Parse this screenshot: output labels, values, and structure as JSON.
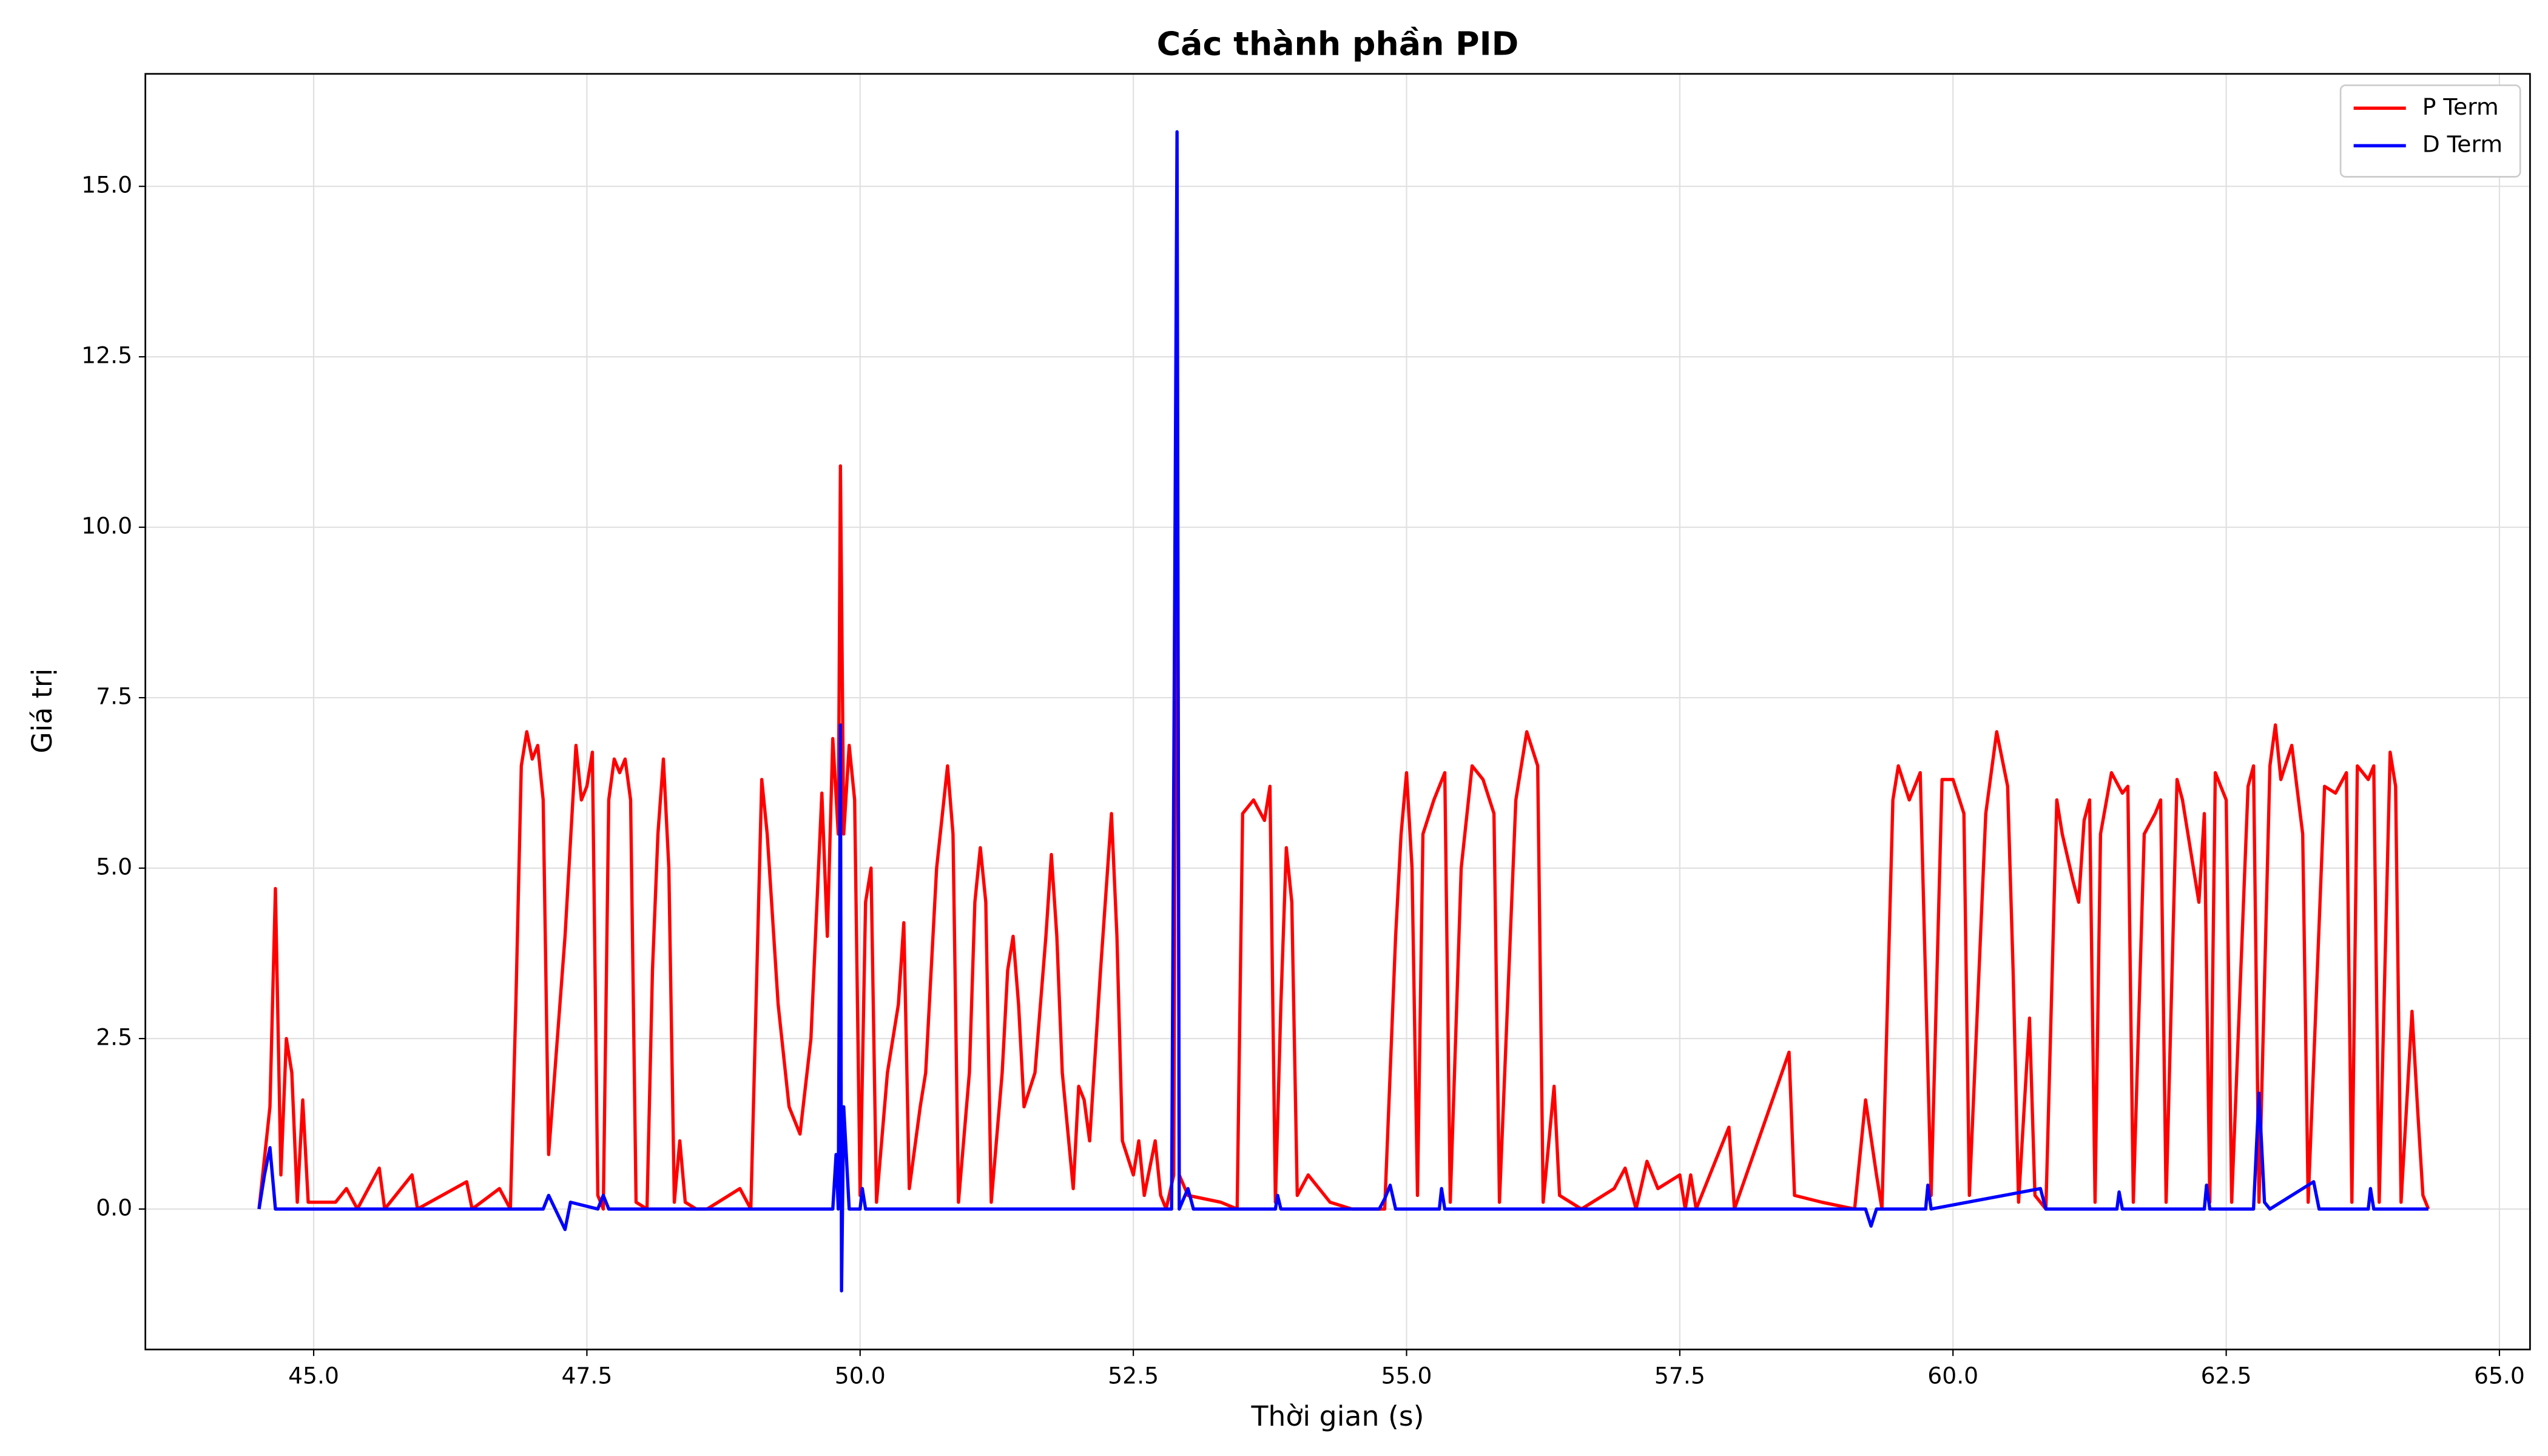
{
  "chart_data": {
    "type": "line",
    "title": "Các thành phần PID",
    "x_label": "Thời gian (s)",
    "y_label": "Giá trị",
    "grid": true,
    "legend": "upper right",
    "xlim": [
      43.46,
      65.28
    ],
    "ylim": [
      -2.06,
      16.65
    ],
    "xticks": [
      {
        "value": 45,
        "label": "45.0"
      },
      47.5,
      {
        "value": 50,
        "label": "50.0"
      },
      52.5,
      {
        "value": 55,
        "label": "55.0"
      },
      57.5,
      {
        "value": 60,
        "label": "60.0"
      },
      62.5,
      {
        "value": 65,
        "label": "65.0"
      }
    ],
    "yticks": [
      {
        "value": 0,
        "label": "0.0"
      },
      2.5,
      {
        "value": 5,
        "label": "5.0"
      },
      7.5,
      {
        "value": 10,
        "label": "10.0"
      },
      12.5,
      {
        "value": 15,
        "label": "15.0"
      }
    ],
    "series": [
      {
        "name": "P Term",
        "color": "#ff0000",
        "x": [
          44.5,
          44.6,
          44.65,
          44.7,
          44.75,
          44.8,
          44.85,
          44.9,
          44.95,
          45.2,
          45.3,
          45.4,
          45.6,
          45.65,
          45.9,
          45.95,
          46.4,
          46.45,
          46.7,
          46.8,
          46.85,
          46.9,
          46.95,
          47.0,
          47.05,
          47.1,
          47.15,
          47.3,
          47.4,
          47.45,
          47.5,
          47.55,
          47.6,
          47.65,
          47.7,
          47.75,
          47.8,
          47.85,
          47.9,
          47.95,
          48.05,
          48.1,
          48.15,
          48.2,
          48.25,
          48.3,
          48.35,
          48.4,
          48.5,
          48.6,
          48.9,
          49.0,
          49.1,
          49.15,
          49.25,
          49.35,
          49.45,
          49.55,
          49.65,
          49.7,
          49.75,
          49.8,
          49.82,
          49.85,
          49.9,
          49.95,
          50.0,
          50.05,
          50.1,
          50.15,
          50.25,
          50.35,
          50.4,
          50.45,
          50.55,
          50.6,
          50.7,
          50.8,
          50.85,
          50.9,
          51.0,
          51.05,
          51.1,
          51.15,
          51.2,
          51.3,
          51.35,
          51.4,
          51.45,
          51.5,
          51.6,
          51.7,
          51.75,
          51.8,
          51.85,
          51.95,
          52.0,
          52.05,
          52.1,
          52.2,
          52.3,
          52.35,
          52.4,
          52.5,
          52.55,
          52.6,
          52.7,
          52.75,
          52.8,
          52.87,
          52.9,
          52.92,
          53.0,
          53.3,
          53.45,
          53.5,
          53.6,
          53.7,
          53.75,
          53.8,
          53.85,
          53.9,
          53.95,
          54.0,
          54.1,
          54.2,
          54.3,
          54.5,
          54.8,
          54.9,
          54.95,
          55.0,
          55.05,
          55.1,
          55.15,
          55.25,
          55.35,
          55.4,
          55.5,
          55.6,
          55.7,
          55.8,
          55.85,
          56.0,
          56.1,
          56.2,
          56.25,
          56.35,
          56.4,
          56.6,
          56.9,
          57.0,
          57.1,
          57.2,
          57.3,
          57.5,
          57.55,
          57.6,
          57.65,
          57.95,
          58.0,
          58.5,
          58.55,
          58.8,
          59.1,
          59.2,
          59.3,
          59.35,
          59.45,
          59.5,
          59.6,
          59.7,
          59.8,
          59.9,
          60.0,
          60.1,
          60.15,
          60.3,
          60.4,
          60.5,
          60.55,
          60.6,
          60.7,
          60.75,
          60.85,
          60.95,
          61.0,
          61.1,
          61.15,
          61.2,
          61.25,
          61.3,
          61.35,
          61.45,
          61.55,
          61.6,
          61.65,
          61.75,
          61.85,
          61.9,
          61.95,
          62.05,
          62.1,
          62.2,
          62.25,
          62.3,
          62.35,
          62.4,
          62.5,
          62.55,
          62.7,
          62.75,
          62.8,
          62.9,
          62.95,
          63.0,
          63.1,
          63.2,
          63.25,
          63.4,
          63.5,
          63.6,
          63.65,
          63.7,
          63.8,
          63.85,
          63.9,
          64.0,
          64.05,
          64.1,
          64.2,
          64.25,
          64.3,
          64.35
        ],
        "values": [
          0,
          1.5,
          4.7,
          0.5,
          2.5,
          2.0,
          0.1,
          1.6,
          0.1,
          0.1,
          0.3,
          0,
          0.6,
          0,
          0.5,
          0,
          0.4,
          0,
          0.3,
          0,
          3,
          6.5,
          7.0,
          6.6,
          6.8,
          6.0,
          0.8,
          4,
          6.8,
          6,
          6.2,
          6.7,
          0.2,
          0,
          6,
          6.6,
          6.4,
          6.6,
          6.0,
          0.1,
          0,
          3.5,
          5.5,
          6.6,
          5,
          0.1,
          1.0,
          0.1,
          0,
          0,
          0.3,
          0,
          6.3,
          5.5,
          3,
          1.5,
          1.1,
          2.5,
          6.1,
          4,
          6.9,
          5.5,
          10.9,
          5.5,
          6.8,
          6,
          0.2,
          4.5,
          5,
          0.1,
          2,
          3,
          4.2,
          0.3,
          1.5,
          2,
          5,
          6.5,
          5.5,
          0.1,
          2,
          4.5,
          5.3,
          4.5,
          0.1,
          2,
          3.5,
          4,
          3,
          1.5,
          2,
          4,
          5.2,
          4,
          2,
          0.3,
          1.8,
          1.6,
          1,
          3.5,
          5.8,
          4,
          1,
          0.5,
          1,
          0.2,
          1,
          0.2,
          0,
          0.5,
          14,
          0.5,
          0.2,
          0.1,
          0,
          5.8,
          6.0,
          5.7,
          6.2,
          0.1,
          3,
          5.3,
          4.5,
          0.2,
          0.5,
          0.3,
          0.1,
          0,
          0,
          4,
          5.5,
          6.4,
          5,
          0.2,
          5.5,
          6,
          6.4,
          0.1,
          5,
          6.5,
          6.3,
          5.8,
          0.1,
          6,
          7,
          6.5,
          0.1,
          1.8,
          0.2,
          0,
          0.3,
          0.6,
          0,
          0.7,
          0.3,
          0.5,
          0,
          0.5,
          0,
          1.2,
          0,
          2.3,
          0.2,
          0.1,
          0,
          1.6,
          0.5,
          0,
          6,
          6.5,
          6.0,
          6.4,
          0.2,
          6.3,
          6.3,
          5.8,
          0.2,
          5.8,
          7,
          6.2,
          3.5,
          0.1,
          2.8,
          0.2,
          0,
          6,
          5.5,
          4.8,
          4.5,
          5.7,
          6,
          0.1,
          5.5,
          6.4,
          6.1,
          6.2,
          0.1,
          5.5,
          5.8,
          6,
          0.1,
          6.3,
          6,
          5,
          4.5,
          5.8,
          0.1,
          6.4,
          6,
          0.1,
          6.2,
          6.5,
          0.1,
          6.5,
          7.1,
          6.3,
          6.8,
          5.5,
          0.1,
          6.2,
          6.1,
          6.4,
          0.1,
          6.5,
          6.3,
          6.5,
          0.1,
          6.7,
          6.2,
          0.1,
          2.9,
          1.5,
          0.2,
          0
        ]
      },
      {
        "name": "D Term",
        "color": "#0000ff",
        "x": [
          44.5,
          44.55,
          44.6,
          44.65,
          45.0,
          47.1,
          47.15,
          47.3,
          47.35,
          47.6,
          47.65,
          47.7,
          49.75,
          49.78,
          49.8,
          49.82,
          49.83,
          49.85,
          49.9,
          50.0,
          50.02,
          50.05,
          52.85,
          52.9,
          52.92,
          53.0,
          53.05,
          53.8,
          53.82,
          53.85,
          54.75,
          54.8,
          54.85,
          54.9,
          55.3,
          55.32,
          55.35,
          59.2,
          59.25,
          59.3,
          59.75,
          59.77,
          59.8,
          60.8,
          60.85,
          61.5,
          61.52,
          61.55,
          62.3,
          62.32,
          62.35,
          62.75,
          62.8,
          62.85,
          62.9,
          63.3,
          63.35,
          63.8,
          63.82,
          63.85,
          64.35
        ],
        "values": [
          0,
          0.5,
          0.9,
          0,
          0,
          0,
          0.2,
          -0.3,
          0.1,
          0,
          0.2,
          0,
          0,
          0.8,
          0,
          7.1,
          -1.2,
          1.5,
          0,
          0,
          0.3,
          0,
          0,
          15.8,
          0,
          0.3,
          0,
          0,
          0.2,
          0,
          0,
          0.15,
          0.35,
          0,
          0,
          0.3,
          0,
          0,
          -0.25,
          0,
          0,
          0.35,
          0,
          0.3,
          0,
          0,
          0.25,
          0,
          0,
          0.35,
          0,
          0,
          1.7,
          0.1,
          0,
          0.4,
          0,
          0,
          0.3,
          0,
          0
        ]
      }
    ]
  }
}
